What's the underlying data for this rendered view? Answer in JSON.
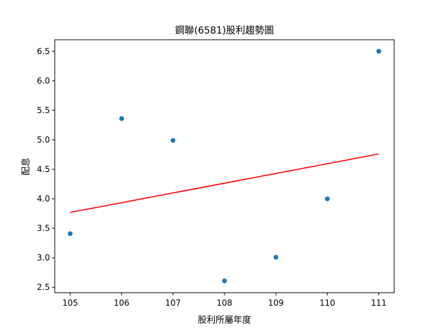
{
  "chart_data": {
    "type": "scatter",
    "title": "鋼聯(6581)股利趨勢圖",
    "xlabel": "股利所屬年度",
    "ylabel": "配息",
    "xlim": [
      104.7,
      111.3
    ],
    "ylim": [
      2.41,
      6.695
    ],
    "x_ticks": [
      "105",
      "106",
      "107",
      "108",
      "109",
      "110",
      "111"
    ],
    "y_ticks": [
      "2.5",
      "3.0",
      "3.5",
      "4.0",
      "4.5",
      "5.0",
      "5.5",
      "6.0",
      "6.5"
    ],
    "points": [
      {
        "x": 105,
        "y": 3.41
      },
      {
        "x": 106,
        "y": 5.36
      },
      {
        "x": 107,
        "y": 4.99
      },
      {
        "x": 108,
        "y": 2.61
      },
      {
        "x": 109,
        "y": 3.01
      },
      {
        "x": 110,
        "y": 4.0
      },
      {
        "x": 111,
        "y": 6.5
      }
    ],
    "trendline": {
      "x": [
        105,
        111
      ],
      "y": [
        3.77,
        4.76
      ]
    },
    "grid": false,
    "legend": "none",
    "colors": {
      "points": "#1f77b4",
      "trendline": "#ff0000",
      "axes": "#000000"
    }
  }
}
